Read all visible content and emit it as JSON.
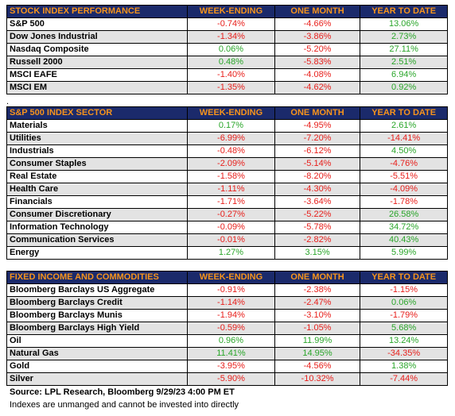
{
  "tables": [
    {
      "header": [
        "STOCK INDEX PERFORMANCE",
        "WEEK-ENDING",
        "ONE MONTH",
        "YEAR TO DATE"
      ],
      "rows": [
        [
          "S&P 500",
          "-0.74%",
          "-4.66%",
          "13.06%"
        ],
        [
          "Dow Jones Industrial",
          "-1.34%",
          "-3.86%",
          "2.73%"
        ],
        [
          "Nasdaq Composite",
          "0.06%",
          "-5.20%",
          "27.11%"
        ],
        [
          "Russell 2000",
          "0.48%",
          "-5.83%",
          "2.51%"
        ],
        [
          "MSCI EAFE",
          "-1.40%",
          "-4.08%",
          "6.94%"
        ],
        [
          "MSCI EM",
          "-1.35%",
          "-4.62%",
          "0.92%"
        ]
      ]
    },
    {
      "header": [
        "S&P 500 INDEX SECTOR",
        "WEEK-ENDING",
        "ONE MONTH",
        "YEAR TO DATE"
      ],
      "rows": [
        [
          "Materials",
          "0.17%",
          "-4.95%",
          "2.61%"
        ],
        [
          "Utilities",
          "-6.99%",
          "-7.20%",
          "-14.41%"
        ],
        [
          "Industrials",
          "-0.48%",
          "-6.12%",
          "4.50%"
        ],
        [
          "Consumer Staples",
          "-2.09%",
          "-5.14%",
          "-4.76%"
        ],
        [
          "Real Estate",
          "-1.58%",
          "-8.20%",
          "-5.51%"
        ],
        [
          "Health Care",
          "-1.11%",
          "-4.30%",
          "-4.09%"
        ],
        [
          "Financials",
          "-1.71%",
          "-3.64%",
          "-1.78%"
        ],
        [
          "Consumer Discretionary",
          "-0.27%",
          "-5.22%",
          "26.58%"
        ],
        [
          "Information Technology",
          "-0.09%",
          "-5.78%",
          "34.72%"
        ],
        [
          "Communication Services",
          "-0.01%",
          "-2.82%",
          "40.43%"
        ],
        [
          "Energy",
          "1.27%",
          "3.15%",
          "5.99%"
        ]
      ]
    },
    {
      "header": [
        "FIXED INCOME AND COMMODITIES",
        "WEEK-ENDING",
        "ONE MONTH",
        "YEAR TO DATE"
      ],
      "rows": [
        [
          "Bloomberg Barclays US Aggregate",
          "-0.91%",
          "-2.38%",
          "-1.15%"
        ],
        [
          "Bloomberg Barclays Credit",
          "-1.14%",
          "-2.47%",
          "0.06%"
        ],
        [
          "Bloomberg Barclays Munis",
          "-1.94%",
          "-3.10%",
          "-1.79%"
        ],
        [
          "Bloomberg Barclays High Yield",
          "-0.59%",
          "-1.05%",
          "5.68%"
        ],
        [
          "Oil",
          "0.96%",
          "11.99%",
          "13.24%"
        ],
        [
          "Natural Gas",
          "11.41%",
          "14.95%",
          "-34.35%"
        ],
        [
          "Gold",
          "-3.95%",
          "-4.56%",
          "1.38%"
        ],
        [
          "Silver",
          "-5.90%",
          "-10.32%",
          "-7.44%"
        ]
      ]
    }
  ],
  "separator": ".",
  "source": "Source: LPL Research, Bloomberg 9/29/23 4:00 PM ET",
  "note": "Indexes are unmanged and cannot be invested into directly"
}
